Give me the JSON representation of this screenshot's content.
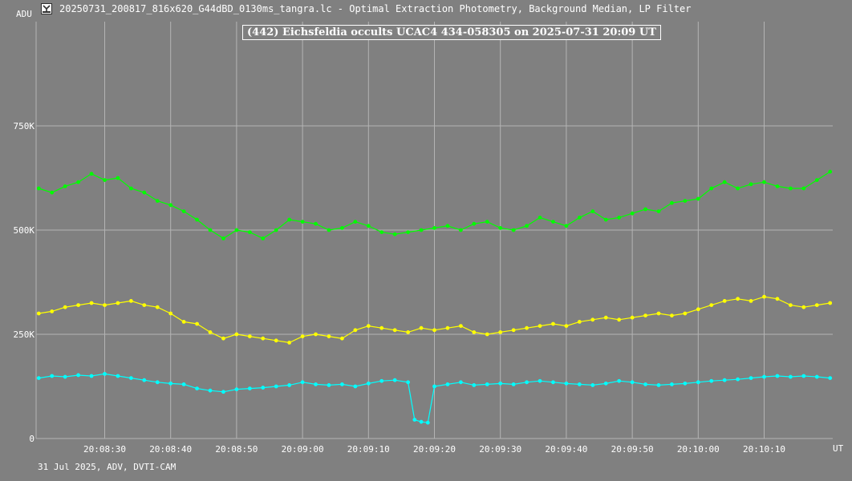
{
  "header": {
    "text": "20250731_200817_816x620_G44dBD_0130ms_tangra.lc - Optimal Extraction Photometry, Background Median, LP Filter"
  },
  "footer": {
    "text": "31 Jul 2025, ADV, DVTI-CAM"
  },
  "colors": {
    "background": "#808080",
    "grid": "#b4b4b4",
    "text": "#ffffff",
    "green": "#00ff00",
    "yellow": "#ffff00",
    "cyan": "#00ffff"
  },
  "chart_data": {
    "type": "line",
    "title": "(442) Eichsfeldia occults UCAC4 434-058305 on 2025-07-31  20:09 UT",
    "ylabel": "ADU",
    "xlabel": "UT",
    "y_ticks": [
      "750K",
      "500K",
      "250K",
      "0"
    ],
    "y_tick_values": [
      750000,
      500000,
      250000,
      0
    ],
    "ylim": [
      0,
      1000000
    ],
    "x_ticks": [
      "20:08:30",
      "20:08:40",
      "20:08:50",
      "20:09:00",
      "20:09:10",
      "20:09:20",
      "20:09:30",
      "20:09:40",
      "20:09:50",
      "20:10:00",
      "20:10:10"
    ],
    "x_tick_seconds": [
      30,
      40,
      50,
      60,
      70,
      80,
      90,
      100,
      110,
      120,
      130
    ],
    "xlim_seconds": [
      19.6,
      140.4
    ],
    "x_origin": "20:08:00",
    "grid": true,
    "markers": true,
    "series": [
      {
        "color": "green",
        "x": [
          20,
          22,
          24,
          26,
          28,
          30,
          32,
          34,
          36,
          38,
          40,
          42,
          44,
          46,
          48,
          50,
          52,
          54,
          56,
          58,
          60,
          62,
          64,
          66,
          68,
          70,
          72,
          74,
          76,
          78,
          80,
          82,
          84,
          86,
          88,
          90,
          92,
          94,
          96,
          98,
          100,
          102,
          104,
          106,
          108,
          110,
          112,
          114,
          116,
          118,
          120,
          122,
          124,
          126,
          128,
          130,
          132,
          134,
          136,
          138,
          140
        ],
        "y": [
          600000,
          590000,
          605000,
          615000,
          635000,
          620000,
          625000,
          600000,
          590000,
          570000,
          560000,
          545000,
          525000,
          500000,
          480000,
          500000,
          495000,
          480000,
          500000,
          525000,
          520000,
          515000,
          500000,
          505000,
          520000,
          510000,
          495000,
          490000,
          495000,
          500000,
          505000,
          510000,
          500000,
          515000,
          520000,
          505000,
          500000,
          510000,
          530000,
          520000,
          510000,
          530000,
          545000,
          525000,
          530000,
          540000,
          550000,
          545000,
          565000,
          570000,
          575000,
          600000,
          615000,
          600000,
          610000,
          615000,
          605000,
          600000,
          600000,
          620000,
          640000
        ]
      },
      {
        "color": "yellow",
        "x": [
          20,
          22,
          24,
          26,
          28,
          30,
          32,
          34,
          36,
          38,
          40,
          42,
          44,
          46,
          48,
          50,
          52,
          54,
          56,
          58,
          60,
          62,
          64,
          66,
          68,
          70,
          72,
          74,
          76,
          78,
          80,
          82,
          84,
          86,
          88,
          90,
          92,
          94,
          96,
          98,
          100,
          102,
          104,
          106,
          108,
          110,
          112,
          114,
          116,
          118,
          120,
          122,
          124,
          126,
          128,
          130,
          132,
          134,
          136,
          138,
          140
        ],
        "y": [
          300000,
          305000,
          315000,
          320000,
          325000,
          320000,
          325000,
          330000,
          320000,
          315000,
          300000,
          280000,
          275000,
          255000,
          240000,
          250000,
          245000,
          240000,
          235000,
          230000,
          245000,
          250000,
          245000,
          240000,
          260000,
          270000,
          265000,
          260000,
          255000,
          265000,
          260000,
          265000,
          270000,
          255000,
          250000,
          255000,
          260000,
          265000,
          270000,
          275000,
          270000,
          280000,
          285000,
          290000,
          285000,
          290000,
          295000,
          300000,
          295000,
          300000,
          310000,
          320000,
          330000,
          335000,
          330000,
          340000,
          335000,
          320000,
          315000,
          320000,
          325000
        ]
      },
      {
        "color": "cyan",
        "x": [
          20,
          22,
          24,
          26,
          28,
          30,
          32,
          34,
          36,
          38,
          40,
          42,
          44,
          46,
          48,
          50,
          52,
          54,
          56,
          58,
          60,
          62,
          64,
          66,
          68,
          70,
          72,
          74,
          76,
          77,
          78,
          79,
          80,
          82,
          84,
          86,
          88,
          90,
          92,
          94,
          96,
          98,
          100,
          102,
          104,
          106,
          108,
          110,
          112,
          114,
          116,
          118,
          120,
          122,
          124,
          126,
          128,
          130,
          132,
          134,
          136,
          138,
          140
        ],
        "y": [
          145000,
          150000,
          148000,
          152000,
          150000,
          155000,
          150000,
          145000,
          140000,
          135000,
          132000,
          130000,
          120000,
          115000,
          112000,
          118000,
          120000,
          122000,
          125000,
          128000,
          135000,
          130000,
          128000,
          130000,
          125000,
          132000,
          138000,
          140000,
          135000,
          45000,
          40000,
          38000,
          125000,
          130000,
          135000,
          128000,
          130000,
          132000,
          130000,
          135000,
          138000,
          135000,
          132000,
          130000,
          128000,
          132000,
          138000,
          135000,
          130000,
          128000,
          130000,
          132000,
          135000,
          138000,
          140000,
          142000,
          145000,
          148000,
          150000,
          148000,
          150000,
          148000,
          145000
        ]
      }
    ]
  }
}
